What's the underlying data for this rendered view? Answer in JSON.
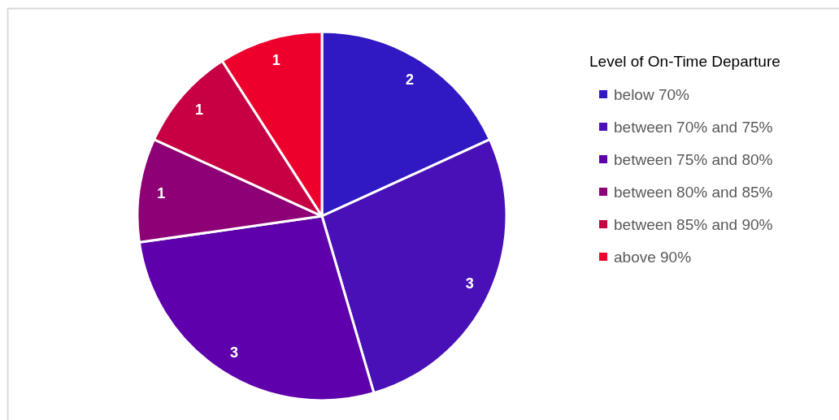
{
  "chart_data": {
    "type": "pie",
    "legend_title": "Level of On-Time Departure",
    "categories": [
      "below 70%",
      "between 70% and 75%",
      "between 75% and 80%",
      "between 80% and 85%",
      "between 85% and 90%",
      "above 90%"
    ],
    "values": [
      2,
      3,
      3,
      1,
      1,
      1
    ],
    "colors": [
      "#3019c2",
      "#4a10b8",
      "#5e00ab",
      "#8e0075",
      "#c70044",
      "#ee002d"
    ],
    "data_labels": true,
    "legend": "right"
  }
}
